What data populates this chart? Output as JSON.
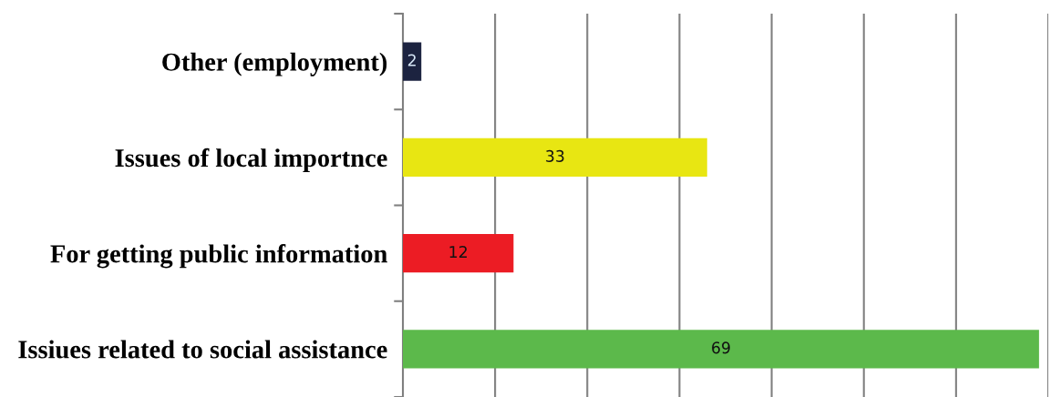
{
  "chart_data": {
    "type": "bar",
    "orientation": "horizontal",
    "categories": [
      "Other (employment)",
      "Issues of local importnce",
      "For getting public information",
      "Issiues related to social assistance"
    ],
    "values": [
      2,
      33,
      12,
      69
    ],
    "colors": [
      "#1c2340",
      "#e8e612",
      "#ec1c24",
      "#5cb94b"
    ],
    "xlim": [
      0,
      70
    ],
    "xticks": [
      {
        "value": 0,
        "label": null
      },
      {
        "value": 10,
        "label": null
      },
      {
        "value": 20,
        "label": null
      },
      {
        "value": 30,
        "label": null
      },
      {
        "value": 40,
        "label": null
      },
      {
        "value": 50,
        "label": null
      },
      {
        "value": 60,
        "label": null
      },
      {
        "value": 70,
        "label": null
      }
    ],
    "grid": "x",
    "data_labels": true,
    "tick_labels": "y"
  }
}
